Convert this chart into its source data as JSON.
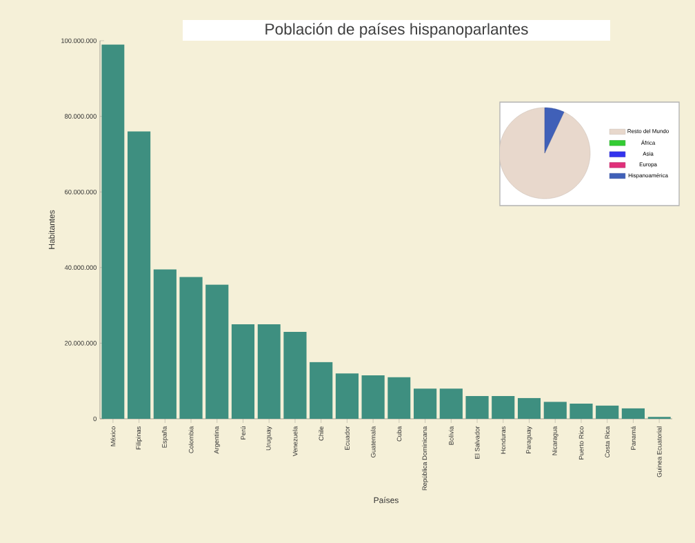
{
  "chart_data": [
    {
      "type": "bar",
      "title": "Población de países hispanoparlantes",
      "xlabel": "Países",
      "ylabel": "Habitantes",
      "categories": [
        "México",
        "Filipinas",
        "España",
        "Colombia",
        "Argentina",
        "Perú",
        "Uruguay",
        "Venezuela",
        "Chile",
        "Ecuador",
        "Guatemala",
        "Cuba",
        "República Dominicana",
        "Bolivia",
        "El Salvador",
        "Honduras",
        "Paraguay",
        "Nicaragua",
        "Puerto Rico",
        "Costa Rica",
        "Panamá",
        "Guinea Ecuatorial"
      ],
      "values": [
        99000000,
        76000000,
        39500000,
        37500000,
        35500000,
        25000000,
        25000000,
        23000000,
        15000000,
        12000000,
        11500000,
        11000000,
        8000000,
        8000000,
        6000000,
        6000000,
        5500000,
        4500000,
        4000000,
        3500000,
        2800000,
        500000
      ],
      "color": "#3e8f80",
      "ylim": [
        0,
        100000000
      ],
      "yticks": [
        0,
        {
          "value": 20000000,
          "label": "20.000.000"
        },
        {
          "value": 40000000,
          "label": "40.000.000"
        },
        {
          "value": 60000000,
          "label": "60.000.000"
        },
        {
          "value": 80000000,
          "label": "80.000.000"
        },
        {
          "value": 100000000,
          "label": "100.000.000"
        }
      ]
    },
    {
      "type": "pie",
      "categories": [
        "Resto del Mundo",
        "África",
        "Asia",
        "Europa",
        "Hispanoamérica"
      ],
      "values": [
        93,
        0,
        0,
        0,
        7
      ],
      "colors": [
        "#e8d8cc",
        "#33cc33",
        "#3333ee",
        "#e0307a",
        "#4060b8"
      ],
      "legend": "right"
    }
  ]
}
